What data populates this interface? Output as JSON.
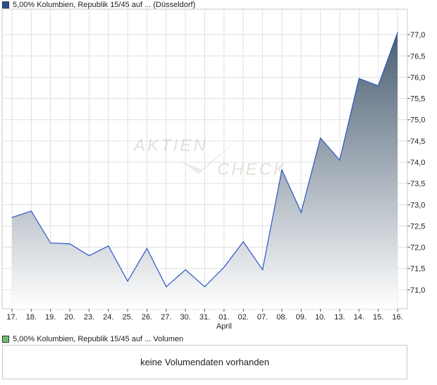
{
  "legend": {
    "price_label": "5,00% Kolumbien, Republik 15/45 auf ... (Düsseldorf)",
    "volume_label": "5,00% Kolumbien, Republik 15/45 auf ... Volumen",
    "price_color": "#2b4d9e",
    "volume_color": "#6fbf73"
  },
  "watermark": {
    "line1": "AKTIEN",
    "line2": "CHECK"
  },
  "volume_panel": {
    "message": "keine Volumendaten vorhanden"
  },
  "chart_data": {
    "type": "area",
    "categories": [
      "17.",
      "18.",
      "19.",
      "20.",
      "23.",
      "24.",
      "25.",
      "26.",
      "27.",
      "30.",
      "31.",
      "01.",
      "02.",
      "07.",
      "08.",
      "09.",
      "10.",
      "13.",
      "14.",
      "15.",
      "16."
    ],
    "month_label": "April",
    "month_label_at": "01.",
    "series": [
      {
        "values": [
          72.7,
          72.85,
          72.1,
          72.08,
          71.8,
          72.03,
          71.2,
          71.97,
          71.07,
          71.47,
          71.07,
          71.53,
          72.13,
          71.47,
          73.82,
          72.82,
          74.57,
          74.05,
          75.97,
          75.8,
          77.05
        ]
      }
    ],
    "y_ticks": [
      "71,0",
      "71,5",
      "72,0",
      "72,5",
      "73,0",
      "73,5",
      "74,0",
      "74,5",
      "75,0",
      "75,5",
      "76,0",
      "76,5",
      "77,0"
    ],
    "y_tick_values": [
      71.0,
      71.5,
      72.0,
      72.5,
      73.0,
      73.5,
      74.0,
      74.5,
      75.0,
      75.5,
      76.0,
      76.5,
      77.0
    ],
    "ylim": [
      70.55,
      77.6
    ],
    "grid": true,
    "line_color": "#2a55c4",
    "fill_top_color": "#4a5e72",
    "fill_bottom_color": "#ffffff"
  }
}
